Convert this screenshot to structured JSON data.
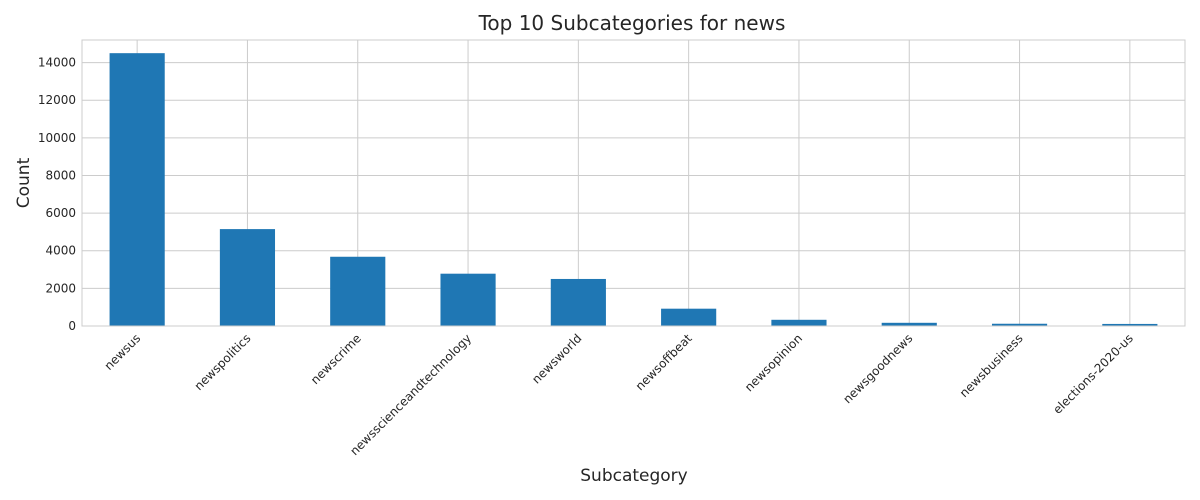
{
  "chart_data": {
    "type": "bar",
    "title": "Top 10 Subcategories for news",
    "xlabel": "Subcategory",
    "ylabel": "Count",
    "categories": [
      "newsus",
      "newspolitics",
      "newscrime",
      "newsscienceandtechnology",
      "newsworld",
      "newsoffbeat",
      "newsopinion",
      "newsgoodnews",
      "newsbusiness",
      "elections-2020-us"
    ],
    "values": [
      14500,
      5150,
      3680,
      2780,
      2500,
      920,
      330,
      170,
      120,
      110
    ],
    "ylim": [
      0,
      15200
    ],
    "yticks": [
      0,
      2000,
      4000,
      6000,
      8000,
      10000,
      12000,
      14000
    ],
    "grid": true,
    "bar_color": "#1f77b4"
  }
}
